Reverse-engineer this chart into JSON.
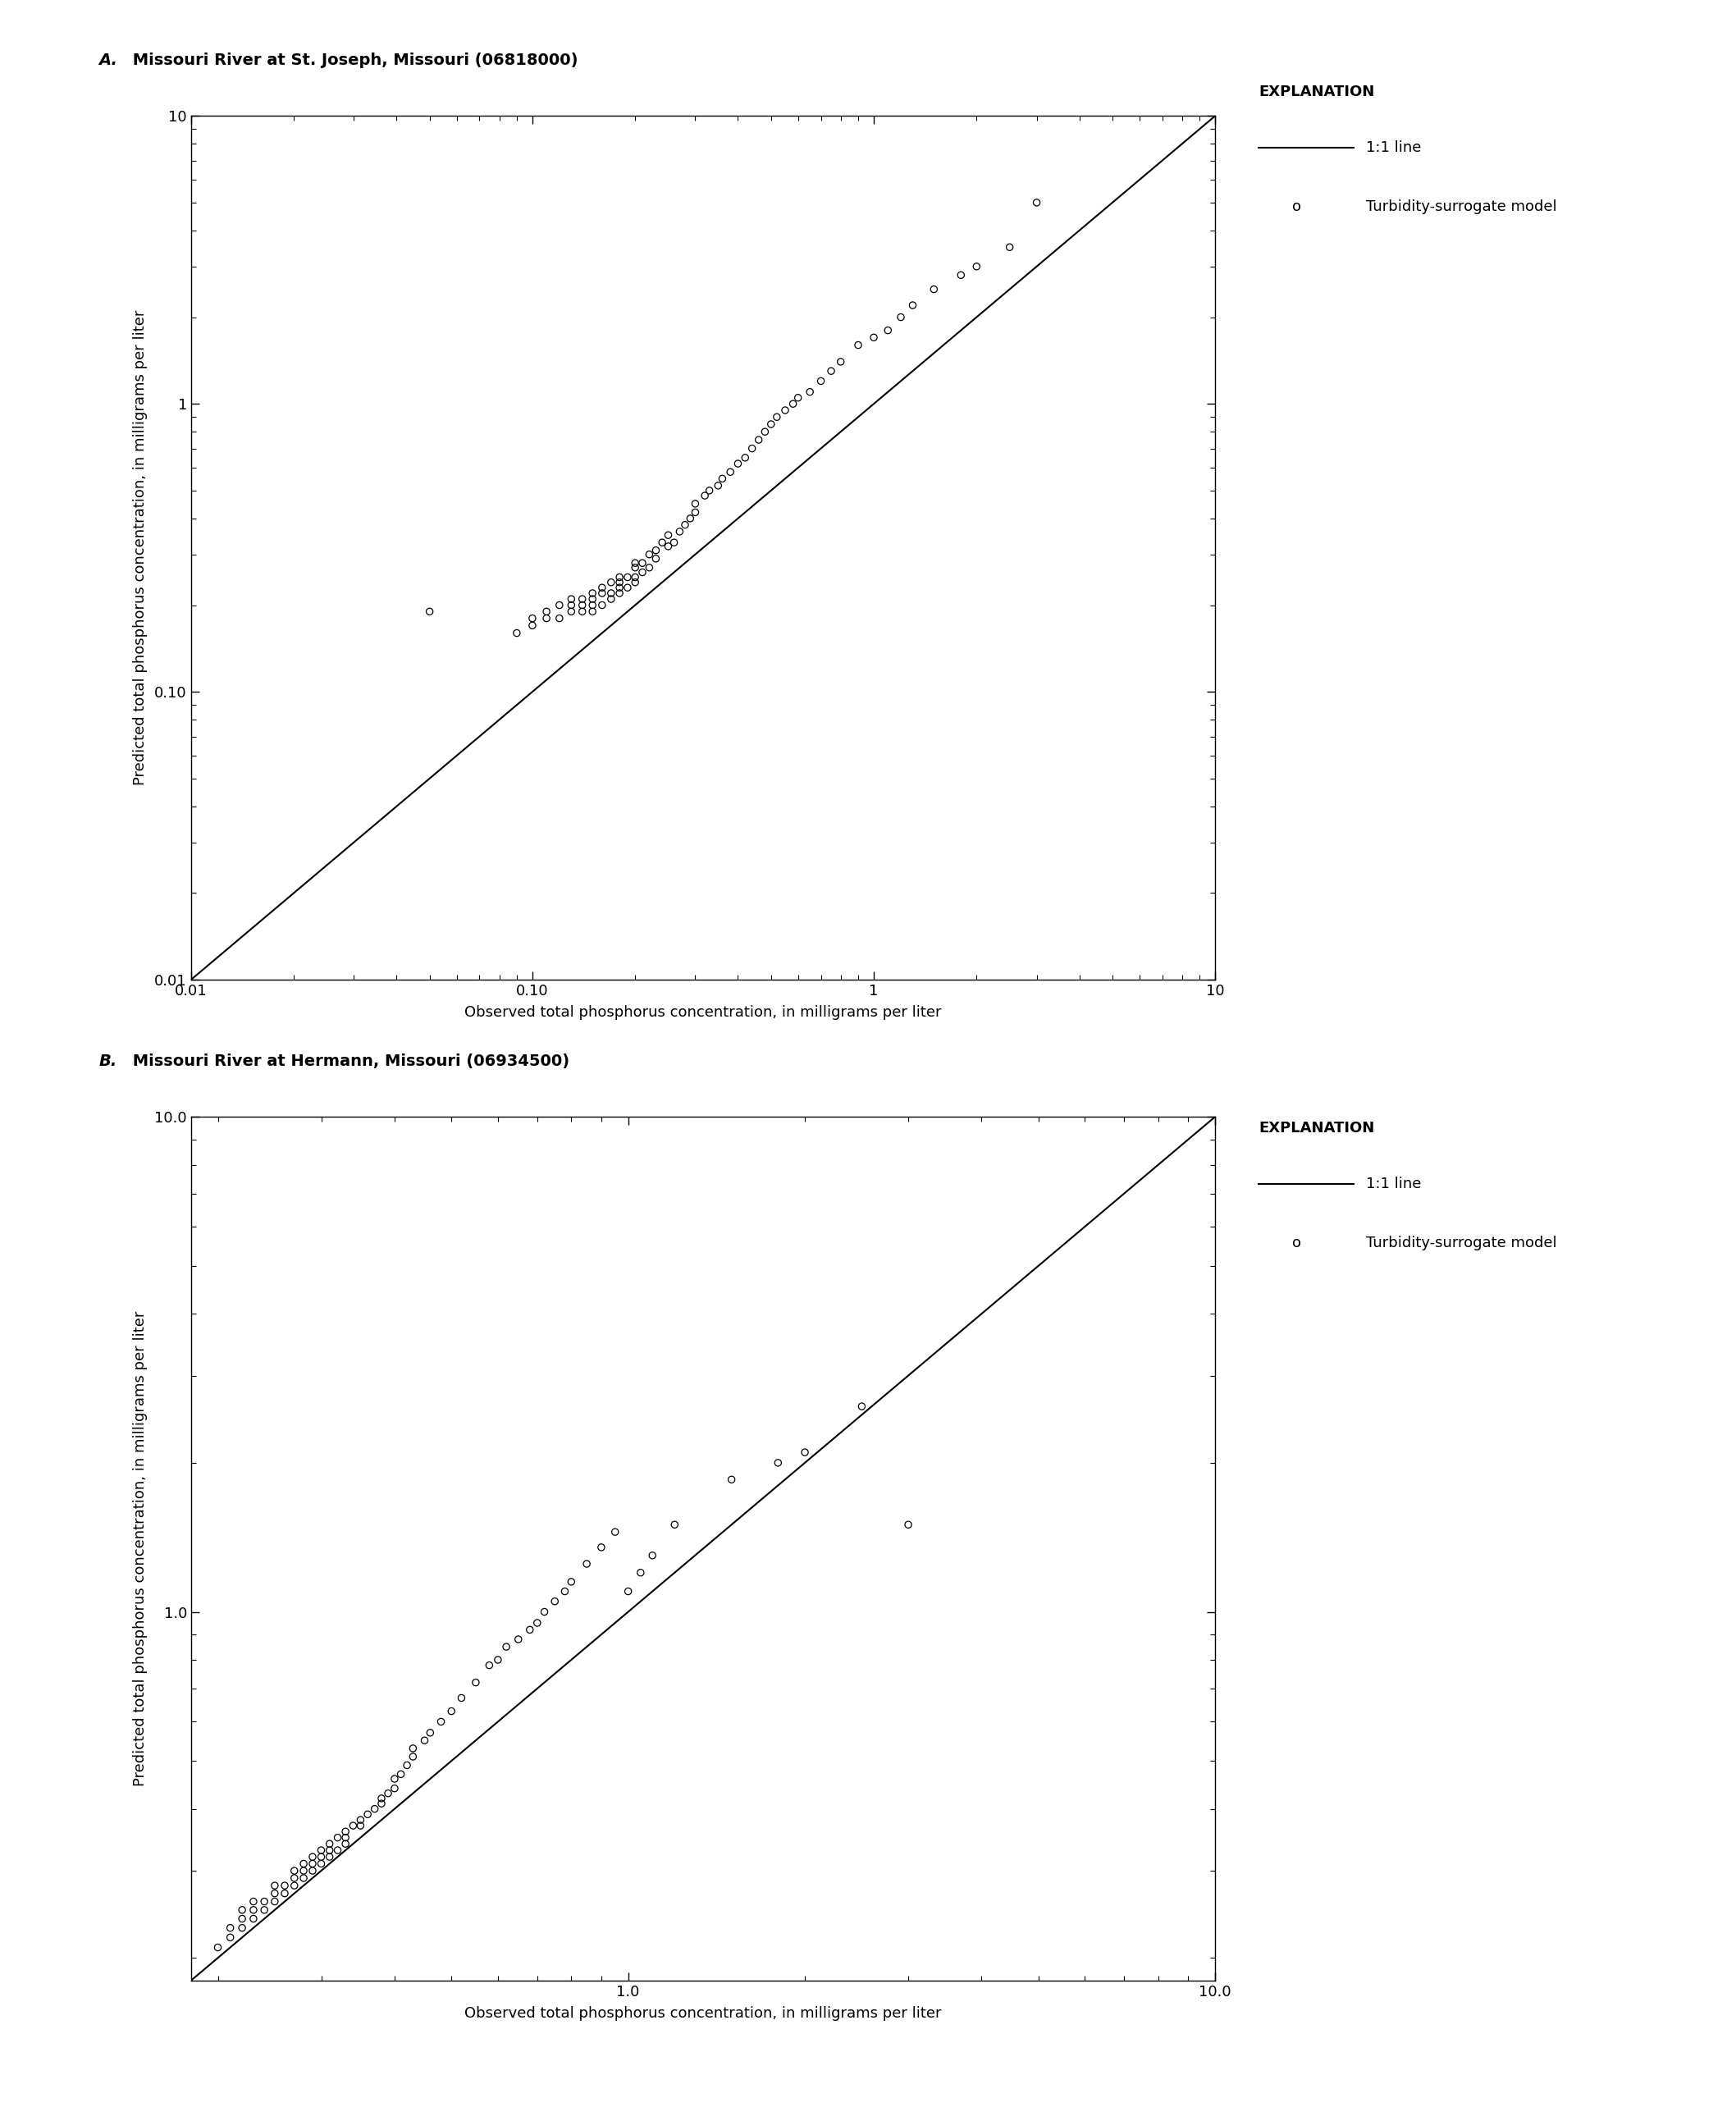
{
  "panel_A": {
    "title_italic": "A.",
    "title_rest": " Missouri River at St. Joseph, Missouri (06818000)",
    "xlim": [
      0.01,
      10
    ],
    "ylim": [
      0.01,
      10
    ],
    "xlabel": "Observed total phosphorus concentration, in milligrams per liter",
    "ylabel": "Predicted total phosphorus concentration, in milligrams per liter",
    "xtick_labels": {
      "0.01": "0.01",
      "0.1": "0.10",
      "1": "1",
      "10": "10"
    },
    "ytick_labels": {
      "0.01": "0.01",
      "0.1": "0.10",
      "1": "1",
      "10": "10"
    },
    "line_x": [
      0.01,
      10
    ],
    "line_y": [
      0.01,
      10
    ],
    "scatter_x": [
      0.05,
      0.09,
      0.1,
      0.1,
      0.11,
      0.11,
      0.12,
      0.12,
      0.13,
      0.13,
      0.13,
      0.14,
      0.14,
      0.14,
      0.15,
      0.15,
      0.15,
      0.15,
      0.16,
      0.16,
      0.16,
      0.17,
      0.17,
      0.17,
      0.18,
      0.18,
      0.18,
      0.18,
      0.19,
      0.19,
      0.2,
      0.2,
      0.2,
      0.2,
      0.21,
      0.21,
      0.22,
      0.22,
      0.23,
      0.23,
      0.24,
      0.25,
      0.25,
      0.26,
      0.27,
      0.28,
      0.29,
      0.3,
      0.3,
      0.32,
      0.33,
      0.35,
      0.36,
      0.38,
      0.4,
      0.42,
      0.44,
      0.46,
      0.48,
      0.5,
      0.52,
      0.55,
      0.58,
      0.6,
      0.65,
      0.7,
      0.75,
      0.8,
      0.9,
      1.0,
      1.1,
      1.2,
      1.3,
      1.5,
      1.8,
      2.0,
      2.5,
      3.0
    ],
    "scatter_y": [
      0.19,
      0.16,
      0.17,
      0.18,
      0.18,
      0.19,
      0.18,
      0.2,
      0.19,
      0.2,
      0.21,
      0.19,
      0.2,
      0.21,
      0.19,
      0.2,
      0.21,
      0.22,
      0.2,
      0.22,
      0.23,
      0.21,
      0.22,
      0.24,
      0.22,
      0.23,
      0.24,
      0.25,
      0.23,
      0.25,
      0.24,
      0.25,
      0.27,
      0.28,
      0.26,
      0.28,
      0.27,
      0.3,
      0.29,
      0.31,
      0.33,
      0.32,
      0.35,
      0.33,
      0.36,
      0.38,
      0.4,
      0.42,
      0.45,
      0.48,
      0.5,
      0.52,
      0.55,
      0.58,
      0.62,
      0.65,
      0.7,
      0.75,
      0.8,
      0.85,
      0.9,
      0.95,
      1.0,
      1.05,
      1.1,
      1.2,
      1.3,
      1.4,
      1.6,
      1.7,
      1.8,
      2.0,
      2.2,
      2.5,
      2.8,
      3.0,
      3.5,
      5.0
    ]
  },
  "panel_B": {
    "title_italic": "B.",
    "title_rest": " Missouri River at Hermann, Missouri (06934500)",
    "xlim": [
      0.18,
      10.0
    ],
    "ylim": [
      0.18,
      10.0
    ],
    "xlabel": "Observed total phosphorus concentration, in milligrams per liter",
    "ylabel": "Predicted total phosphorus concentration, in milligrams per liter",
    "line_x": [
      0.18,
      10.0
    ],
    "line_y": [
      0.18,
      10.0
    ],
    "scatter_x": [
      0.2,
      0.21,
      0.21,
      0.22,
      0.22,
      0.22,
      0.23,
      0.23,
      0.23,
      0.24,
      0.24,
      0.25,
      0.25,
      0.25,
      0.26,
      0.26,
      0.27,
      0.27,
      0.27,
      0.28,
      0.28,
      0.28,
      0.29,
      0.29,
      0.29,
      0.3,
      0.3,
      0.3,
      0.31,
      0.31,
      0.31,
      0.32,
      0.32,
      0.33,
      0.33,
      0.33,
      0.34,
      0.35,
      0.35,
      0.36,
      0.37,
      0.38,
      0.38,
      0.39,
      0.4,
      0.4,
      0.41,
      0.42,
      0.43,
      0.43,
      0.45,
      0.46,
      0.48,
      0.5,
      0.52,
      0.55,
      0.58,
      0.6,
      0.62,
      0.65,
      0.68,
      0.7,
      0.72,
      0.75,
      0.78,
      0.8,
      0.85,
      0.9,
      0.95,
      1.0,
      1.05,
      1.1,
      1.2,
      1.5,
      1.8,
      2.0,
      2.5,
      3.0
    ],
    "scatter_y": [
      0.21,
      0.22,
      0.23,
      0.23,
      0.24,
      0.25,
      0.24,
      0.25,
      0.26,
      0.25,
      0.26,
      0.26,
      0.27,
      0.28,
      0.27,
      0.28,
      0.28,
      0.29,
      0.3,
      0.29,
      0.3,
      0.31,
      0.3,
      0.31,
      0.32,
      0.31,
      0.32,
      0.33,
      0.32,
      0.33,
      0.34,
      0.33,
      0.35,
      0.34,
      0.35,
      0.36,
      0.37,
      0.37,
      0.38,
      0.39,
      0.4,
      0.41,
      0.42,
      0.43,
      0.44,
      0.46,
      0.47,
      0.49,
      0.51,
      0.53,
      0.55,
      0.57,
      0.6,
      0.63,
      0.67,
      0.72,
      0.78,
      0.8,
      0.85,
      0.88,
      0.92,
      0.95,
      1.0,
      1.05,
      1.1,
      1.15,
      1.25,
      1.35,
      1.45,
      1.1,
      1.2,
      1.3,
      1.5,
      1.85,
      2.0,
      2.1,
      2.6,
      1.5
    ]
  },
  "explanation_label": "EXPLANATION",
  "legend_line_label": "1:1 line",
  "legend_scatter_label": "Turbidity-surrogate model",
  "line_color": "black",
  "scatter_facecolor": "none",
  "scatter_edgecolor": "black",
  "scatter_size": 35,
  "scatter_linewidth": 0.9,
  "line_linewidth": 1.5,
  "background_color": "white"
}
